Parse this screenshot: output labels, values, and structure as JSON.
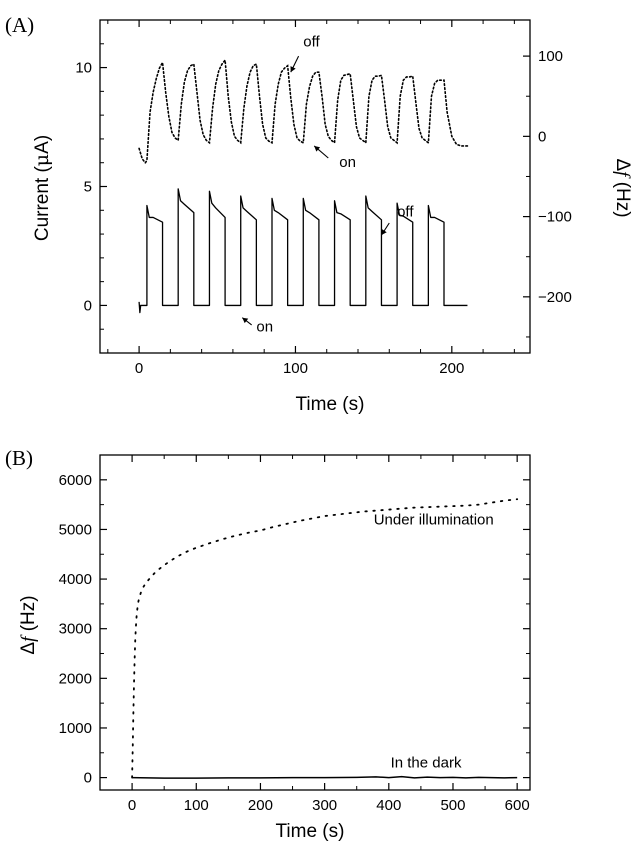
{
  "chart_data": [
    {
      "panel_label": "(A)",
      "type": "line",
      "xlabel": "Time (s)",
      "ylabel_left_prefix": "Current (",
      "ylabel_left_mu": "μ",
      "ylabel_left_suffix": "A)",
      "ylabel_right_prefix": "Δ",
      "ylabel_right_f": "f",
      "ylabel_right_suffix": " (Hz)",
      "xlim": [
        -25,
        250
      ],
      "ylim_left": [
        -2,
        12
      ],
      "ylim_right": [
        -270,
        145
      ],
      "xticks": [
        0,
        100,
        200
      ],
      "xticks_minor": [
        -20,
        20,
        40,
        60,
        80,
        120,
        140,
        160,
        180,
        220,
        240
      ],
      "yticks_left": [
        0,
        5,
        10
      ],
      "yticks_right": [
        -200,
        -100,
        0,
        100
      ],
      "series": [
        {
          "axis": "left",
          "style": "solid",
          "pulses": [
            {
              "on": 5,
              "off": 15,
              "start": 4.2,
              "end": 3.5
            },
            {
              "on": 25,
              "off": 35,
              "start": 4.9,
              "end": 3.9
            },
            {
              "on": 45,
              "off": 55,
              "start": 4.8,
              "end": 3.7
            },
            {
              "on": 65,
              "off": 75,
              "start": 4.6,
              "end": 3.6
            },
            {
              "on": 85,
              "off": 95,
              "start": 4.5,
              "end": 3.6
            },
            {
              "on": 105,
              "off": 115,
              "start": 4.5,
              "end": 3.6
            },
            {
              "on": 125,
              "off": 135,
              "start": 4.4,
              "end": 3.6
            },
            {
              "on": 145,
              "off": 155,
              "start": 4.6,
              "end": 3.6
            },
            {
              "on": 165,
              "off": 175,
              "start": 4.3,
              "end": 3.5
            },
            {
              "on": 185,
              "off": 195,
              "start": 4.2,
              "end": 3.5
            }
          ],
          "end_time": 210
        },
        {
          "axis": "right",
          "style": "dotted",
          "x": [
            0,
            2,
            4,
            5,
            7,
            9,
            11,
            13,
            15,
            17,
            19,
            21,
            23,
            25,
            27,
            29,
            31,
            33,
            35,
            37,
            39,
            41,
            43,
            45,
            47,
            49,
            51,
            53,
            55,
            57,
            59,
            61,
            63,
            65,
            67,
            69,
            71,
            73,
            75,
            77,
            79,
            81,
            83,
            85,
            87,
            89,
            91,
            93,
            95,
            97,
            99,
            101,
            103,
            105,
            107,
            109,
            111,
            113,
            115,
            117,
            119,
            121,
            123,
            125,
            127,
            129,
            131,
            133,
            135,
            137,
            139,
            141,
            143,
            145,
            147,
            149,
            151,
            153,
            155,
            157,
            159,
            161,
            163,
            165,
            167,
            169,
            171,
            173,
            175,
            177,
            179,
            181,
            183,
            185,
            187,
            189,
            191,
            193,
            195,
            197,
            200,
            203,
            206,
            209,
            211
          ],
          "y": [
            -15,
            -28,
            -33,
            -30,
            30,
            55,
            72,
            85,
            92,
            55,
            25,
            5,
            -2,
            -5,
            40,
            68,
            82,
            88,
            90,
            55,
            20,
            2,
            -5,
            -8,
            35,
            65,
            82,
            90,
            95,
            50,
            18,
            0,
            -5,
            -8,
            35,
            63,
            80,
            88,
            90,
            50,
            15,
            -2,
            -6,
            -8,
            40,
            65,
            80,
            85,
            88,
            48,
            15,
            -2,
            -6,
            -8,
            40,
            62,
            75,
            80,
            80,
            50,
            15,
            0,
            -5,
            -8,
            45,
            70,
            76,
            77,
            78,
            45,
            12,
            -2,
            -5,
            -8,
            50,
            70,
            75,
            75,
            76,
            45,
            12,
            -2,
            -5,
            -8,
            50,
            70,
            74,
            74,
            75,
            42,
            10,
            -2,
            -5,
            -8,
            50,
            66,
            70,
            70,
            70,
            30,
            0,
            -10,
            -12,
            -12,
            -12
          ]
        }
      ],
      "annotations": [
        {
          "text": "off",
          "x": 105,
          "y_right": 112
        },
        {
          "text": "on",
          "x": 128,
          "y_right": -38
        },
        {
          "text": "off",
          "x": 165,
          "y_right": -100
        },
        {
          "text": "on",
          "x": 75,
          "y_right": -243
        }
      ]
    },
    {
      "panel_label": "(B)",
      "type": "scatter",
      "xlabel": "Time (s)",
      "ylabel_prefix": "Δ",
      "ylabel_f": "f",
      "ylabel_suffix": " (Hz)",
      "xlim": [
        -50,
        620
      ],
      "ylim": [
        -250,
        6500
      ],
      "xticks": [
        0,
        100,
        200,
        300,
        400,
        500,
        600
      ],
      "xticks_minor": [
        -50,
        50,
        150,
        250,
        350,
        450,
        550
      ],
      "yticks": [
        0,
        1000,
        2000,
        3000,
        4000,
        5000,
        6000
      ],
      "yticks_minor": [
        500,
        1500,
        2500,
        3500,
        4500,
        5500
      ],
      "series": [
        {
          "name": "Under illumination",
          "style": "dotted",
          "x": [
            0,
            1,
            2,
            3,
            4,
            5,
            6,
            7,
            8,
            9,
            10,
            12,
            14,
            16,
            18,
            20,
            22,
            24,
            26,
            28,
            30,
            35,
            40,
            45,
            50,
            60,
            70,
            80,
            90,
            100,
            120,
            140,
            160,
            180,
            200,
            220,
            240,
            260,
            280,
            300,
            320,
            340,
            360,
            380,
            400,
            420,
            440,
            460,
            480,
            500,
            520,
            540,
            560,
            580,
            600
          ],
          "y": [
            0,
            600,
            1300,
            1900,
            2400,
            2800,
            3050,
            3250,
            3380,
            3480,
            3560,
            3660,
            3740,
            3800,
            3850,
            3890,
            3930,
            3960,
            3990,
            4020,
            4050,
            4120,
            4180,
            4230,
            4280,
            4370,
            4450,
            4520,
            4580,
            4630,
            4720,
            4800,
            4870,
            4930,
            4980,
            5050,
            5110,
            5170,
            5220,
            5270,
            5300,
            5330,
            5360,
            5380,
            5400,
            5420,
            5440,
            5450,
            5460,
            5470,
            5480,
            5500,
            5540,
            5580,
            5610
          ]
        },
        {
          "name": "In the dark",
          "style": "solid",
          "x": [
            0,
            50,
            100,
            150,
            200,
            250,
            300,
            350,
            380,
            400,
            420,
            440,
            460,
            480,
            500,
            520,
            540,
            560,
            580,
            600
          ],
          "y": [
            0,
            -10,
            -10,
            -5,
            -5,
            0,
            0,
            5,
            15,
            0,
            20,
            -5,
            10,
            0,
            5,
            -5,
            5,
            0,
            -5,
            0
          ]
        }
      ],
      "annotations": [
        {
          "text": "Under illumination",
          "x": 470,
          "y": 5100
        },
        {
          "text": "In the dark",
          "x": 458,
          "y": 200
        }
      ]
    }
  ]
}
